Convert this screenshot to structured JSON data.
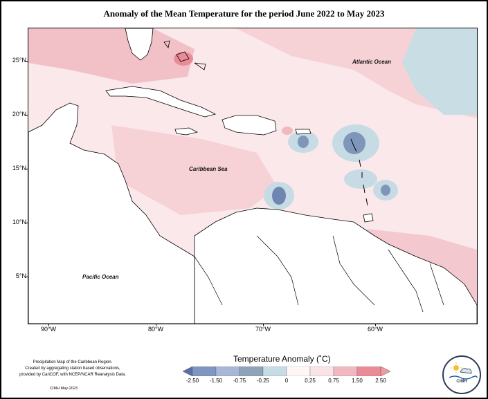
{
  "title": "Anomaly of the Mean Temperature for the period June 2022 to May 2023",
  "ocean_labels": {
    "atlantic": "Atlantic Ocean",
    "caribbean": "Caribbean Sea",
    "pacific": "Pacific Ocean"
  },
  "lat_labels": [
    "25°N",
    "20°N",
    "15°N",
    "10°N",
    "5°N"
  ],
  "lon_labels": [
    "90°W",
    "80°W",
    "70°W",
    "60°W"
  ],
  "legend": {
    "title": "Temperature Anomaly (˚C)",
    "tick_labels": [
      "-2.50",
      "-1.50",
      "-0.75",
      "-0.25",
      "0",
      "0.25",
      "0.75",
      "1.50",
      "2.50"
    ],
    "colors": [
      "#5a6ea8",
      "#7f95c2",
      "#a7b7d6",
      "#8ea4b8",
      "#c6dbe3",
      "#fff6f6",
      "#f9e3e6",
      "#f2b8c0",
      "#ea8c97",
      "#f19aa3"
    ]
  },
  "credit": {
    "line1": "Precipitation Map of the Caribbean Region.",
    "line2": "Created by aggregating station based observations,",
    "line3": "provided by CariCOF, with NCEP/NCAR Reanalysis Data.",
    "date": "CIMH May-2023"
  },
  "logo": {
    "text": "CIMH"
  }
}
